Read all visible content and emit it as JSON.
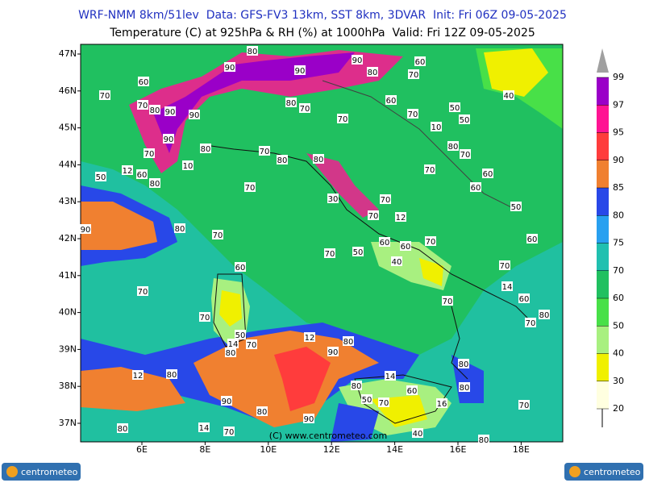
{
  "header": {
    "line1": "WRF-NMM 8km/51lev  Data: GFS-FV3 13km, SST 8km, 3DVAR  Init: Fri 06Z 09-05-2025",
    "line2": "Temperature (C) at 925hPa & RH (%) at 1000hPa  Valid: Fri 12Z 09-05-2025"
  },
  "map": {
    "lat_labels": [
      "47N",
      "46N",
      "45N",
      "44N",
      "43N",
      "42N",
      "41N",
      "40N",
      "39N",
      "38N",
      "37N"
    ],
    "lon_labels": [
      "6E",
      "8E",
      "10E",
      "12E",
      "14E",
      "16E",
      "18E"
    ],
    "contour_labels": [
      80,
      90,
      90,
      90,
      60,
      80,
      70,
      60,
      70,
      70,
      80,
      90,
      90,
      80,
      70,
      60,
      50,
      40,
      70,
      70,
      50,
      10,
      90,
      80,
      70,
      70,
      80,
      80,
      80,
      70,
      10,
      12,
      50,
      60,
      80,
      70,
      60,
      70,
      60,
      30,
      70,
      50,
      70,
      12,
      90,
      80,
      70,
      60,
      60,
      70,
      60,
      50,
      40,
      70,
      60,
      70,
      70,
      14,
      70,
      60,
      70,
      80,
      70,
      50,
      14,
      70,
      12,
      80,
      80,
      90,
      80,
      12,
      80,
      14,
      80,
      60,
      80,
      90,
      50,
      70,
      16,
      70,
      80,
      14,
      70,
      80,
      90,
      40,
      80
    ],
    "copyright": "(C) www.centrometeo.com"
  },
  "colorbar": {
    "levels": [
      20,
      30,
      40,
      50,
      60,
      70,
      75,
      80,
      85,
      90,
      95,
      97,
      99
    ],
    "colors": [
      "#ffffe0",
      "#f0f000",
      "#a8f080",
      "#48e048",
      "#20c060",
      "#20c0b0",
      "#28a0f0",
      "#2848e8",
      "#f08030",
      "#ff3c3c",
      "#ff1493",
      "#9a00c8"
    ]
  },
  "logos": [
    "centrometeo",
    "centrometeo"
  ]
}
